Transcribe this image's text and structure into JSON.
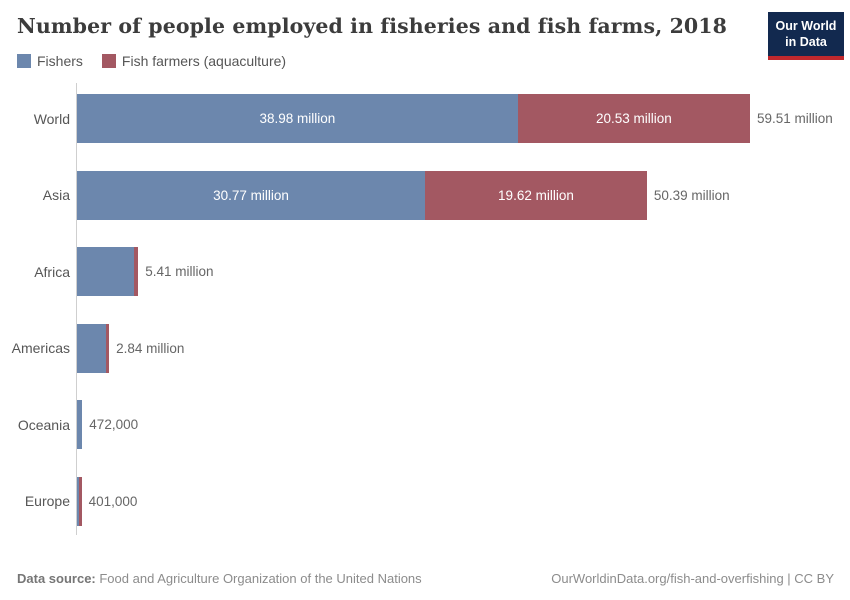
{
  "header": {
    "title": "Number of people employed in fisheries and fish farms, 2018",
    "logo": {
      "line1": "Our World",
      "line2": "in Data",
      "bg_color": "#12294f",
      "strip_color": "#c0282d"
    }
  },
  "legend": [
    {
      "label": "Fishers",
      "color": "#6c87ad"
    },
    {
      "label": "Fish farmers (aquaculture)",
      "color": "#a35862"
    }
  ],
  "chart_data": {
    "type": "bar",
    "orientation": "horizontal",
    "stacked": true,
    "title": "Number of people employed in fisheries and fish farms, 2018",
    "unit": "people (millions)",
    "categories": [
      "World",
      "Asia",
      "Africa",
      "Americas",
      "Oceania",
      "Europe"
    ],
    "series": [
      {
        "name": "Fishers",
        "color": "#6c87ad",
        "values": [
          38.98,
          30.77,
          5.02,
          2.55,
          0.472,
          0.21
        ]
      },
      {
        "name": "Fish farmers (aquaculture)",
        "color": "#a35862",
        "values": [
          20.53,
          19.62,
          0.39,
          0.29,
          0,
          0.191
        ]
      }
    ],
    "totals": [
      59.51,
      50.39,
      5.41,
      2.84,
      0.472,
      0.401
    ],
    "segment_labels": [
      [
        "38.98 million",
        "20.53 million"
      ],
      [
        "30.77 million",
        "19.62 million"
      ],
      [
        "",
        ""
      ],
      [
        "",
        ""
      ],
      [
        "",
        ""
      ],
      [
        "",
        ""
      ]
    ],
    "total_labels": [
      "59.51 million",
      "50.39 million",
      "5.41 million",
      "2.84 million",
      "472,000",
      "401,000"
    ],
    "xlim": [
      0,
      59.51
    ],
    "grid": false,
    "legend_position": "top-left",
    "axis_color": "#cfcfcf"
  },
  "footer": {
    "datasource_label": "Data source:",
    "datasource_value": " Food and Agriculture Organization of the United Nations",
    "credit": "OurWorldinData.org/fish-and-overfishing | CC BY"
  }
}
